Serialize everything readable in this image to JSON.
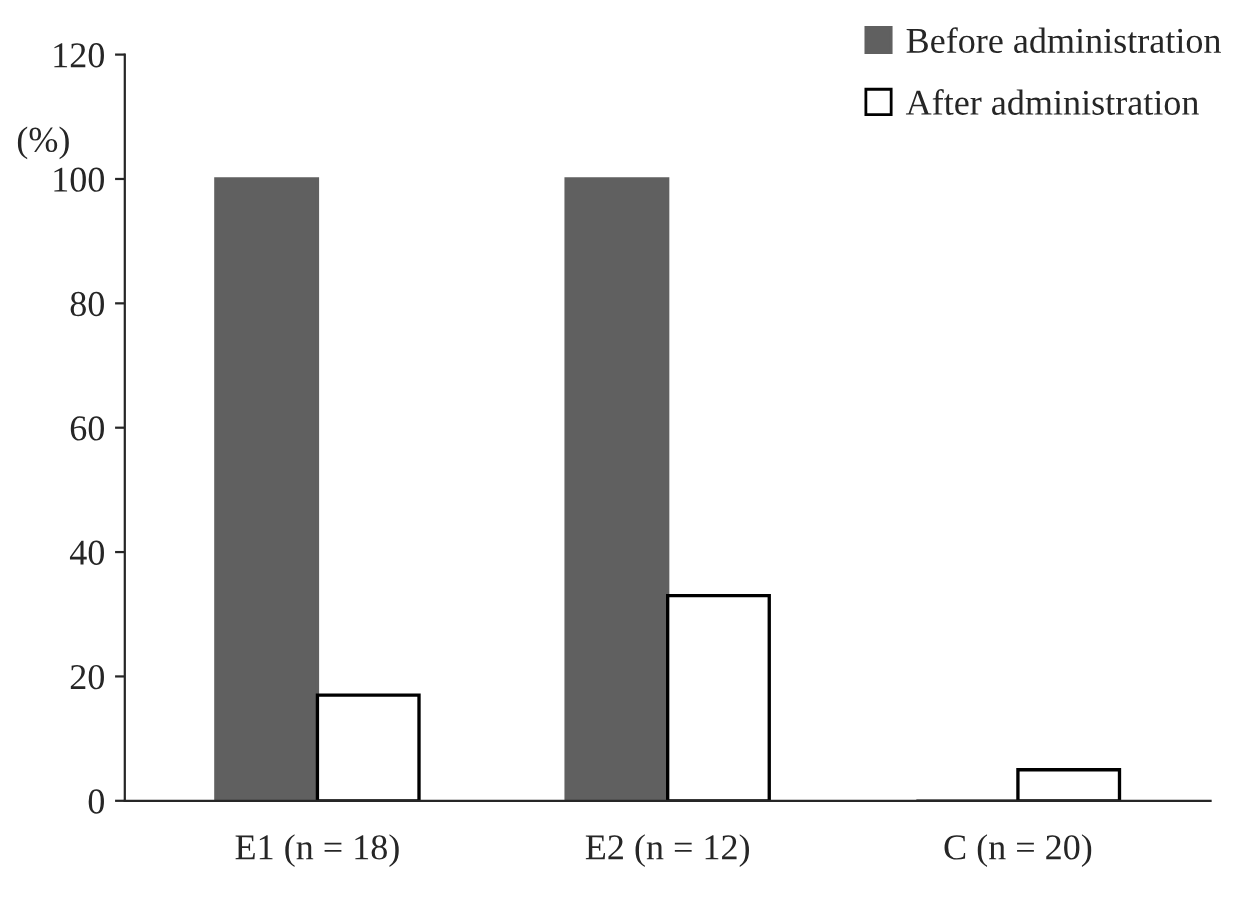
{
  "chart_data": {
    "type": "bar",
    "ylabel": "(%)",
    "categories": [
      "E1 (n = 18)",
      "E2 (n = 12)",
      "C (n = 20)"
    ],
    "series": [
      {
        "name": "Before administration",
        "color": "#606060",
        "values": [
          100,
          100,
          0
        ]
      },
      {
        "name": "After administration",
        "color": "#ffffff",
        "values": [
          17,
          33,
          5
        ]
      }
    ],
    "ylim": [
      0,
      120
    ],
    "yticks": [
      0,
      20,
      40,
      60,
      80,
      100,
      120
    ],
    "grid": false,
    "legend": "top right"
  }
}
